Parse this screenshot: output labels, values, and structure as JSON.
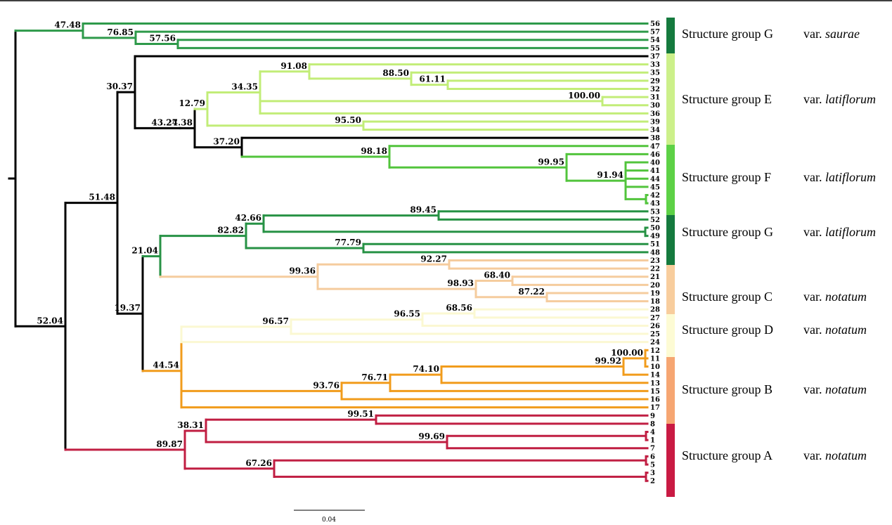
{
  "colors": {
    "saurae": "#2e9a4a",
    "lightgreen": "#c2ed78",
    "midgreen": "#52c43c",
    "darkgreen": "#279245",
    "peach": "#f5cc9e",
    "cream": "#fbf8d2",
    "orange": "#f19c1c",
    "red": "#c01e42",
    "backbone": "#000000",
    "bar_G": "#157a3e",
    "bar_E": "#ccf08a",
    "bar_F": "#5dd146",
    "bar_C": "#f8cd9d",
    "bar_D": "#fdfbd4",
    "bar_B": "#f6a672",
    "bar_A": "#c91a43"
  },
  "tips": [
    "56",
    "57",
    "54",
    "55",
    "37",
    "33",
    "35",
    "29",
    "32",
    "31",
    "30",
    "36",
    "39",
    "34",
    "38",
    "47",
    "46",
    "40",
    "41",
    "44",
    "45",
    "42",
    "43",
    "53",
    "52",
    "50",
    "49",
    "51",
    "48",
    "23",
    "22",
    "21",
    "20",
    "19",
    "18",
    "28",
    "27",
    "26",
    "25",
    "24",
    "12",
    "11",
    "10",
    "14",
    "13",
    "15",
    "16",
    "17",
    "9",
    "8",
    "4",
    "1",
    "7",
    "6",
    "5",
    "3",
    "2"
  ],
  "bootstrap": [
    "47.48",
    "76.85",
    "57.56",
    "30.37",
    "91.08",
    "88.50",
    "61.11",
    "43.27",
    "34.35",
    "100.00",
    "12.79",
    "24.38",
    "95.50",
    "37.20",
    "98.18",
    "99.95",
    "91.94",
    "51.48",
    "42.66",
    "89.45",
    "82.82",
    "77.79",
    "21.04",
    "92.27",
    "99.36",
    "68.40",
    "98.93",
    "87.22",
    "19.37",
    "68.56",
    "96.55",
    "96.57",
    "44.54",
    "100.00",
    "99.92",
    "74.10",
    "76.71",
    "93.76",
    "52.04",
    "99.51",
    "38.31",
    "99.69",
    "89.87",
    "67.26"
  ],
  "groups": [
    {
      "name": "Structure group G",
      "variety_prefix": "var.",
      "variety": "saurae"
    },
    {
      "name": "Structure group E",
      "variety_prefix": "var.",
      "variety": "latiflorum"
    },
    {
      "name": "Structure group F",
      "variety_prefix": "var.",
      "variety": "latiflorum"
    },
    {
      "name": "Structure group G",
      "variety_prefix": "var.",
      "variety": "latiflorum"
    },
    {
      "name": "Structure group C",
      "variety_prefix": "var.",
      "variety": "notatum"
    },
    {
      "name": "Structure group D",
      "variety_prefix": "var.",
      "variety": "notatum"
    },
    {
      "name": "Structure group B",
      "variety_prefix": "var.",
      "variety": "notatum"
    },
    {
      "name": "Structure group A",
      "variety_prefix": "var.",
      "variety": "notatum"
    }
  ],
  "scale_bar": {
    "label": "0.04"
  }
}
